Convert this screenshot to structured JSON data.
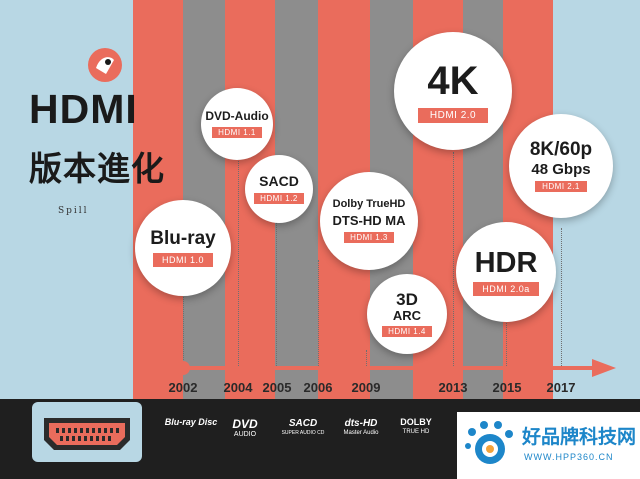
{
  "title": {
    "main": "HDMI",
    "chinese": "版本進化",
    "brand": "Spill"
  },
  "colors": {
    "background": "#b8d7e4",
    "coral": "#ea6c5c",
    "gray": "#8d8d8d",
    "dark": "#1f1f1f"
  },
  "milestones": [
    {
      "year": "2002",
      "lines": [
        "Blu-ray"
      ],
      "version": "HDMI 1.0"
    },
    {
      "year": "2004",
      "lines": [
        "DVD-Audio"
      ],
      "version": "HDMI 1.1"
    },
    {
      "year": "2005",
      "lines": [
        "SACD"
      ],
      "version": "HDMI 1.2"
    },
    {
      "year": "2006",
      "lines": [
        "Dolby TrueHD",
        "DTS-HD MA"
      ],
      "version": "HDMI 1.3"
    },
    {
      "year": "2009",
      "lines": [
        "3D",
        "ARC"
      ],
      "version": "HDMI 1.4"
    },
    {
      "year": "2013",
      "lines": [
        "4K"
      ],
      "version": "HDMI 2.0"
    },
    {
      "year": "2015",
      "lines": [
        "HDR"
      ],
      "version": "HDMI 2.0a"
    },
    {
      "year": "2017",
      "lines": [
        "8K/60p",
        "48 Gbps"
      ],
      "version": "HDMI 2.1"
    }
  ],
  "logos": [
    {
      "main": "Blu-ray Disc",
      "sub": ""
    },
    {
      "main": "DVD",
      "sub": "AUDIO"
    },
    {
      "main": "SACD",
      "sub": "SUPER AUDIO CD"
    },
    {
      "main": "dts-HD",
      "sub": "Master Audio"
    },
    {
      "main": "DOLBY",
      "sub": "TRUE HD"
    }
  ],
  "watermark": {
    "text": "好品牌科技网",
    "url": "WWW.HPP360.CN"
  }
}
